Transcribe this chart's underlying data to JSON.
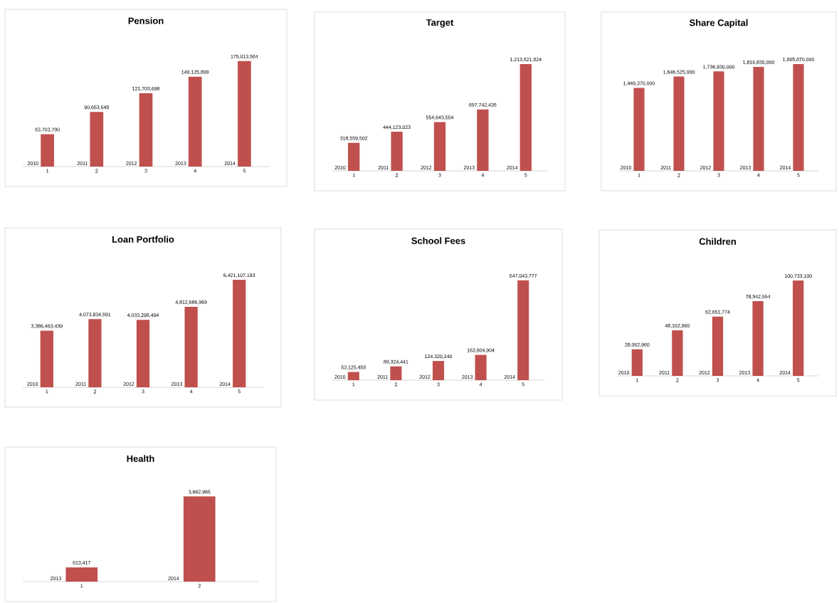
{
  "chart_data": [
    {
      "type": "bar",
      "title": "Pension",
      "categories": [
        "1",
        "2",
        "3",
        "4",
        "5"
      ],
      "values": [
        53703790,
        90653548,
        121703698,
        149125899,
        175013564
      ],
      "color": "#c0504d",
      "value_labels": [
        "53,703,790",
        "90,653,548",
        "121,703,698",
        "149,125,899",
        "175,013,564"
      ],
      "tick_labels": "x",
      "annotations": [
        {
          "text": "2010",
          "x": "1",
          "y": 0
        },
        {
          "text": "2011",
          "x": "2",
          "y": 0
        },
        {
          "text": "2012",
          "x": "3",
          "y": 0
        },
        {
          "text": "2013",
          "x": "4",
          "y": 0
        },
        {
          "text": "2014",
          "x": "5",
          "y": 0
        }
      ]
    },
    {
      "type": "bar",
      "title": "Target",
      "categories": [
        "1",
        "2",
        "3",
        "4",
        "5"
      ],
      "values": [
        318559502,
        444123023,
        554643554,
        697742435,
        1213821824
      ],
      "color": "#c0504d",
      "value_labels": [
        "318,559,502",
        "444,123,023",
        "554,643,554",
        "697,742,435",
        "1,213,821,824"
      ],
      "tick_labels": "x",
      "annotations": [
        {
          "text": "2010",
          "x": "1",
          "y": 0
        },
        {
          "text": "2011",
          "x": "2",
          "y": 0
        },
        {
          "text": "2012",
          "x": "3",
          "y": 0
        },
        {
          "text": "2013",
          "x": "4",
          "y": 0
        },
        {
          "text": "2014",
          "x": "5",
          "y": 0
        }
      ]
    },
    {
      "type": "bar",
      "title": "Share Capital",
      "categories": [
        "1",
        "2",
        "3",
        "4",
        "5"
      ],
      "values": [
        1449370000,
        1646525000,
        1736930000,
        1816835000,
        1865870000
      ],
      "color": "#c0504d",
      "value_labels": [
        "1,449,370,000",
        "1,646,525,000",
        "1,736,930,000",
        "1,816,835,000",
        "1,865,870,000"
      ],
      "tick_labels": "x",
      "annotations": [
        {
          "text": "2010",
          "x": "1",
          "y": 0
        },
        {
          "text": "2011",
          "x": "2",
          "y": 0
        },
        {
          "text": "2012",
          "x": "3",
          "y": 0
        },
        {
          "text": "2013",
          "x": "4",
          "y": 0
        },
        {
          "text": "2014",
          "x": "5",
          "y": 0
        }
      ]
    },
    {
      "type": "bar",
      "title": "Loan Portfolio",
      "categories": [
        "1",
        "2",
        "3",
        "4",
        "5"
      ],
      "values": [
        3386463439,
        4073834591,
        4033298494,
        4812686969,
        6421107193
      ],
      "color": "#c0504d",
      "value_labels": [
        "3,386,463,439",
        "4,073,834,591",
        "4,033,298,494",
        "4,812,686,969",
        "6,421,107,193"
      ],
      "tick_labels": "x",
      "annotations": [
        {
          "text": "2010",
          "x": "1",
          "y": 0
        },
        {
          "text": "2011",
          "x": "2",
          "y": 0
        },
        {
          "text": "2012",
          "x": "3",
          "y": 0
        },
        {
          "text": "2013",
          "x": "4",
          "y": 0
        },
        {
          "text": "2014",
          "x": "5",
          "y": 0
        }
      ]
    },
    {
      "type": "bar",
      "title": "School Fees",
      "categories": [
        "1",
        "2",
        "3",
        "4",
        "5"
      ],
      "values": [
        53125458,
        89324441,
        124320240,
        163904904,
        647043777
      ],
      "color": "#c0504d",
      "value_labels": [
        "53,125,458",
        "89,324,441",
        "124,320,240",
        "163,904,904",
        "647,043,777"
      ],
      "tick_labels": "x",
      "annotations": [
        {
          "text": "2010",
          "x": "1",
          "y": 0
        },
        {
          "text": "2011",
          "x": "2",
          "y": 0
        },
        {
          "text": "2012",
          "x": "3",
          "y": 0
        },
        {
          "text": "2013",
          "x": "4",
          "y": 0
        },
        {
          "text": "2014",
          "x": "5",
          "y": 0
        }
      ]
    },
    {
      "type": "bar",
      "title": "Children",
      "categories": [
        "1",
        "2",
        "3",
        "4",
        "5"
      ],
      "values": [
        28062960,
        48162960,
        62651774,
        78942554,
        100733100
      ],
      "color": "#c0504d",
      "value_labels": [
        "28,062,960",
        "48,162,960",
        "62,651,774",
        "78,942,554",
        "100,733,100"
      ],
      "tick_labels": "x",
      "annotations": [
        {
          "text": "2010",
          "x": "1",
          "y": 0
        },
        {
          "text": "2011",
          "x": "2",
          "y": 0
        },
        {
          "text": "2012",
          "x": "3",
          "y": 0
        },
        {
          "text": "2013",
          "x": "4",
          "y": 0
        },
        {
          "text": "2014",
          "x": "5",
          "y": 0
        }
      ]
    },
    {
      "type": "bar",
      "title": "Health",
      "categories": [
        "1",
        "2"
      ],
      "values": [
        613417,
        3662965
      ],
      "color": "#c0504d",
      "value_labels": [
        "613,417",
        "3,662,965"
      ],
      "tick_labels": "x",
      "annotations": [
        "2013",
        "2014"
      ]
    }
  ]
}
